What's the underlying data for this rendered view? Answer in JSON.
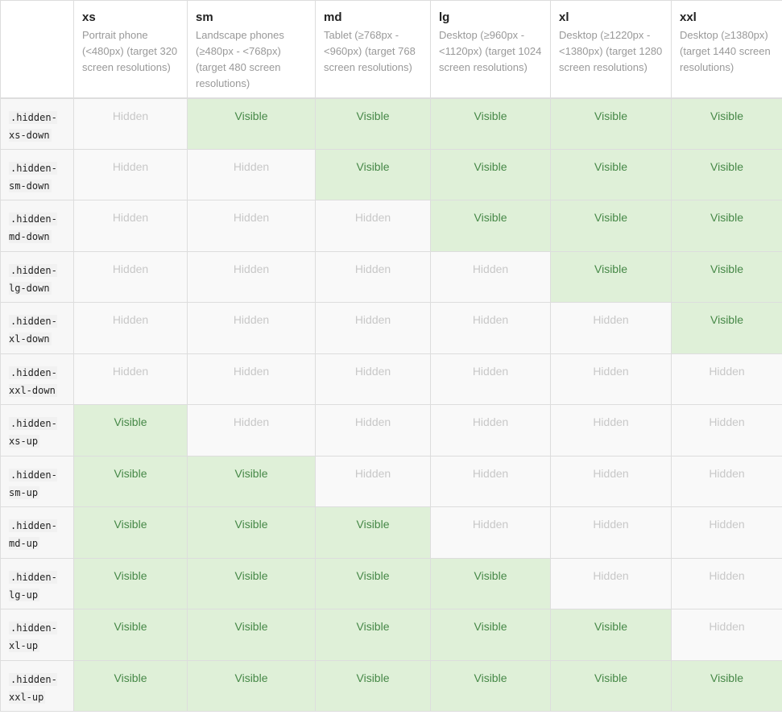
{
  "table": {
    "columns": [
      {
        "name": "xs",
        "description": "Portrait phone (<480px) (target 320 screen resolutions)"
      },
      {
        "name": "sm",
        "description": "Landscape phones (≥480px - <768px) (target 480 screen resolutions)"
      },
      {
        "name": "md",
        "description": "Tablet (≥768px - <960px) (target 768 screen resolutions)"
      },
      {
        "name": "lg",
        "description": "Desktop (≥960px - <1120px) (target 1024 screen resolutions)"
      },
      {
        "name": "xl",
        "description": "Desktop (≥1220px - <1380px) (target 1280 screen resolutions)"
      },
      {
        "name": "xxl",
        "description": "Desktop (≥1380px) (target 1440 screen resolutions)"
      }
    ],
    "rows": [
      {
        "class": ".hidden-xs-down",
        "cells": [
          "Hidden",
          "Visible",
          "Visible",
          "Visible",
          "Visible",
          "Visible"
        ]
      },
      {
        "class": ".hidden-sm-down",
        "cells": [
          "Hidden",
          "Hidden",
          "Visible",
          "Visible",
          "Visible",
          "Visible"
        ]
      },
      {
        "class": ".hidden-md-down",
        "cells": [
          "Hidden",
          "Hidden",
          "Hidden",
          "Visible",
          "Visible",
          "Visible"
        ]
      },
      {
        "class": ".hidden-lg-down",
        "cells": [
          "Hidden",
          "Hidden",
          "Hidden",
          "Hidden",
          "Visible",
          "Visible"
        ]
      },
      {
        "class": ".hidden-xl-down",
        "cells": [
          "Hidden",
          "Hidden",
          "Hidden",
          "Hidden",
          "Hidden",
          "Visible"
        ]
      },
      {
        "class": ".hidden-xxl-down",
        "cells": [
          "Hidden",
          "Hidden",
          "Hidden",
          "Hidden",
          "Hidden",
          "Hidden"
        ]
      },
      {
        "class": ".hidden-xs-up",
        "cells": [
          "Visible",
          "Hidden",
          "Hidden",
          "Hidden",
          "Hidden",
          "Hidden"
        ]
      },
      {
        "class": ".hidden-sm-up",
        "cells": [
          "Visible",
          "Visible",
          "Hidden",
          "Hidden",
          "Hidden",
          "Hidden"
        ]
      },
      {
        "class": ".hidden-md-up",
        "cells": [
          "Visible",
          "Visible",
          "Visible",
          "Hidden",
          "Hidden",
          "Hidden"
        ]
      },
      {
        "class": ".hidden-lg-up",
        "cells": [
          "Visible",
          "Visible",
          "Visible",
          "Visible",
          "Hidden",
          "Hidden"
        ]
      },
      {
        "class": ".hidden-xl-up",
        "cells": [
          "Visible",
          "Visible",
          "Visible",
          "Visible",
          "Visible",
          "Hidden"
        ]
      },
      {
        "class": ".hidden-xxl-up",
        "cells": [
          "Visible",
          "Visible",
          "Visible",
          "Visible",
          "Visible",
          "Visible"
        ]
      }
    ]
  }
}
